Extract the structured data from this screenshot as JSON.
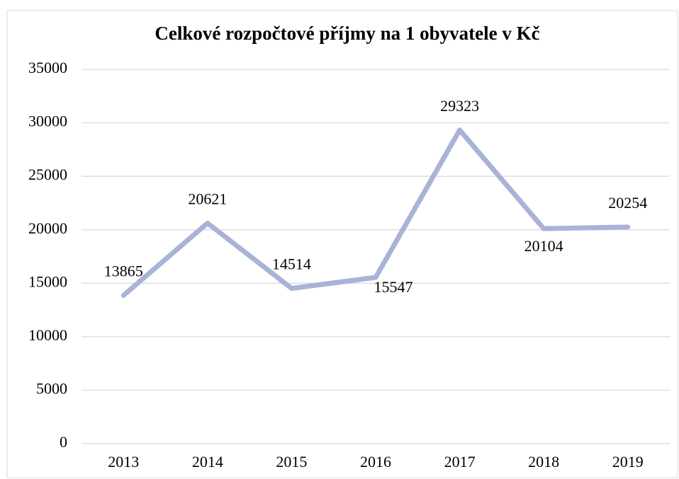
{
  "chart_data": {
    "type": "line",
    "title": "Celkové rozpočtové příjmy na 1 obyvatele v Kč",
    "categories": [
      "2013",
      "2014",
      "2015",
      "2016",
      "2017",
      "2018",
      "2019"
    ],
    "values": [
      13865,
      20621,
      14514,
      15547,
      29323,
      20104,
      20254
    ],
    "color": "#a9b3d7",
    "ylim": [
      0,
      35000
    ],
    "yticks": [
      0,
      5000,
      10000,
      15000,
      20000,
      25000,
      30000,
      35000
    ],
    "grid": true
  }
}
